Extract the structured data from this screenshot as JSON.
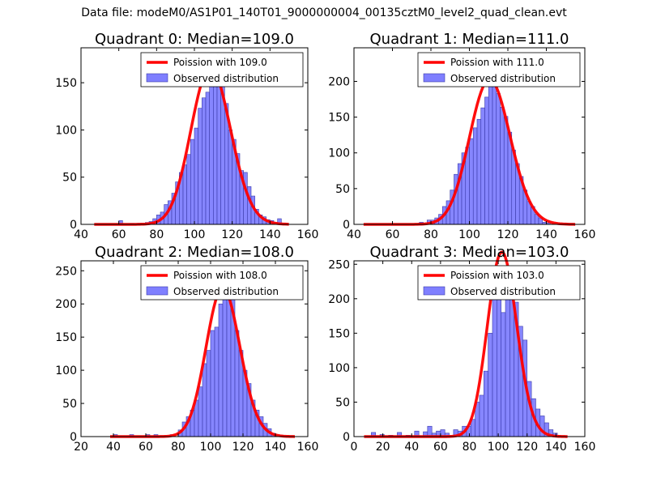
{
  "figure": {
    "suptitle": "Data file: modeM0/AS1P01_140T01_9000000004_00135cztM0_level2_quad_clean.evt"
  },
  "colors": {
    "poisson_line": "#ff0000",
    "bar_fill": "#7f7fff",
    "bar_edge": "#3a3aa8",
    "axes": "#000000"
  },
  "chart_data": [
    {
      "type": "bar",
      "title": "Quadrant 0: Median=109.0",
      "xlim": [
        40,
        160
      ],
      "ylim": [
        0,
        187
      ],
      "xticks": [
        40,
        60,
        80,
        100,
        120,
        140,
        160
      ],
      "yticks": [
        0,
        50,
        100,
        150
      ],
      "legend": {
        "placement": "top-right",
        "entries": [
          "Poission with 109.0",
          "Observed distribution"
        ]
      },
      "bin_width": 2,
      "bins": [
        [
          60,
          4
        ],
        [
          66,
          1
        ],
        [
          70,
          1
        ],
        [
          74,
          2
        ],
        [
          76,
          3
        ],
        [
          78,
          6
        ],
        [
          80,
          10
        ],
        [
          82,
          13
        ],
        [
          84,
          21
        ],
        [
          86,
          25
        ],
        [
          88,
          33
        ],
        [
          90,
          45
        ],
        [
          92,
          55
        ],
        [
          94,
          63
        ],
        [
          96,
          74
        ],
        [
          98,
          90
        ],
        [
          100,
          102
        ],
        [
          102,
          123
        ],
        [
          104,
          134
        ],
        [
          106,
          140
        ],
        [
          108,
          148
        ],
        [
          110,
          154
        ],
        [
          112,
          153
        ],
        [
          114,
          150
        ],
        [
          116,
          128
        ],
        [
          118,
          100
        ],
        [
          120,
          90
        ],
        [
          122,
          75
        ],
        [
          124,
          57
        ],
        [
          126,
          55
        ],
        [
          128,
          40
        ],
        [
          130,
          30
        ],
        [
          132,
          16
        ],
        [
          134,
          10
        ],
        [
          136,
          8
        ],
        [
          138,
          5
        ],
        [
          140,
          4
        ],
        [
          142,
          2
        ],
        [
          144,
          6
        ]
      ],
      "series": [
        {
          "name": "Poission with 109.0",
          "mean": 109.0,
          "x": [
            47,
            150
          ]
        }
      ]
    },
    {
      "type": "bar",
      "title": "Quadrant 1: Median=111.0",
      "xlim": [
        40,
        160
      ],
      "ylim": [
        0,
        247
      ],
      "xticks": [
        40,
        60,
        80,
        100,
        120,
        140,
        160
      ],
      "yticks": [
        0,
        50,
        100,
        150,
        200
      ],
      "legend": {
        "placement": "top-right",
        "entries": [
          "Poission with 111.0",
          "Observed distribution"
        ]
      },
      "bin_width": 2,
      "bins": [
        [
          74,
          3
        ],
        [
          78,
          6
        ],
        [
          80,
          6
        ],
        [
          82,
          9
        ],
        [
          84,
          14
        ],
        [
          86,
          25
        ],
        [
          88,
          33
        ],
        [
          90,
          48
        ],
        [
          92,
          70
        ],
        [
          94,
          85
        ],
        [
          96,
          100
        ],
        [
          98,
          108
        ],
        [
          100,
          120
        ],
        [
          102,
          135
        ],
        [
          104,
          147
        ],
        [
          106,
          163
        ],
        [
          108,
          178
        ],
        [
          110,
          193
        ],
        [
          112,
          219
        ],
        [
          114,
          183
        ],
        [
          116,
          164
        ],
        [
          118,
          151
        ],
        [
          120,
          129
        ],
        [
          122,
          104
        ],
        [
          124,
          85
        ],
        [
          126,
          67
        ],
        [
          128,
          48
        ],
        [
          130,
          32
        ],
        [
          132,
          25
        ],
        [
          134,
          14
        ],
        [
          136,
          9
        ],
        [
          138,
          3
        ],
        [
          140,
          2
        ]
      ],
      "series": [
        {
          "name": "Poission with 111.0",
          "mean": 111.0,
          "x": [
            45,
            155
          ]
        }
      ]
    },
    {
      "type": "bar",
      "title": "Quadrant 2: Median=108.0",
      "xlim": [
        20,
        160
      ],
      "ylim": [
        0,
        265
      ],
      "xticks": [
        20,
        40,
        60,
        80,
        100,
        120,
        140,
        160
      ],
      "yticks": [
        0,
        50,
        100,
        150,
        200,
        250
      ],
      "legend": {
        "placement": "top-right",
        "entries": [
          "Poission with 108.0",
          "Observed distribution"
        ]
      },
      "bin_width": 2.5,
      "bins": [
        [
          40,
          3
        ],
        [
          50,
          3
        ],
        [
          60,
          3
        ],
        [
          65,
          3
        ],
        [
          75,
          3
        ],
        [
          80,
          10
        ],
        [
          82.5,
          22
        ],
        [
          85,
          30
        ],
        [
          87.5,
          40
        ],
        [
          90,
          55
        ],
        [
          92.5,
          75
        ],
        [
          95,
          110
        ],
        [
          97.5,
          130
        ],
        [
          100,
          160
        ],
        [
          102.5,
          165
        ],
        [
          105,
          200
        ],
        [
          107.5,
          230
        ],
        [
          110,
          250
        ],
        [
          112.5,
          210
        ],
        [
          115,
          160
        ],
        [
          117.5,
          130
        ],
        [
          120,
          100
        ],
        [
          122.5,
          80
        ],
        [
          125,
          55
        ],
        [
          127.5,
          40
        ],
        [
          130,
          30
        ],
        [
          132.5,
          20
        ],
        [
          135,
          12
        ],
        [
          137.5,
          5
        ],
        [
          140,
          3
        ],
        [
          142.5,
          2
        ]
      ],
      "series": [
        {
          "name": "Poission with 108.0",
          "mean": 108.0,
          "x": [
            38,
            152
          ]
        }
      ]
    },
    {
      "type": "bar",
      "title": "Quadrant 3: Median=103.0",
      "xlim": [
        0,
        160
      ],
      "ylim": [
        0,
        255
      ],
      "xticks": [
        0,
        20,
        40,
        60,
        80,
        100,
        120,
        140,
        160
      ],
      "yticks": [
        0,
        50,
        100,
        150,
        200,
        250
      ],
      "legend": {
        "placement": "top-right",
        "entries": [
          "Poission with 103.0",
          "Observed distribution"
        ]
      },
      "bin_width": 3,
      "bins": [
        [
          12,
          6
        ],
        [
          18,
          3
        ],
        [
          24,
          2
        ],
        [
          30,
          6
        ],
        [
          36,
          2
        ],
        [
          42,
          8
        ],
        [
          48,
          7
        ],
        [
          51,
          15
        ],
        [
          54,
          5
        ],
        [
          57,
          8
        ],
        [
          60,
          10
        ],
        [
          63,
          5
        ],
        [
          69,
          10
        ],
        [
          72,
          8
        ],
        [
          75,
          15
        ],
        [
          78,
          15
        ],
        [
          81,
          25
        ],
        [
          84,
          50
        ],
        [
          87,
          60
        ],
        [
          90,
          95
        ],
        [
          93,
          150
        ],
        [
          96,
          200
        ],
        [
          99,
          210
        ],
        [
          102,
          180
        ],
        [
          105,
          200
        ],
        [
          108,
          240
        ],
        [
          111,
          195
        ],
        [
          114,
          160
        ],
        [
          117,
          140
        ],
        [
          120,
          80
        ],
        [
          123,
          55
        ],
        [
          126,
          40
        ],
        [
          129,
          30
        ],
        [
          132,
          20
        ],
        [
          135,
          10
        ],
        [
          138,
          5
        ]
      ],
      "series": [
        {
          "name": "Poission with 103.0",
          "mean": 103.0,
          "x": [
            7,
            148
          ]
        }
      ]
    }
  ]
}
